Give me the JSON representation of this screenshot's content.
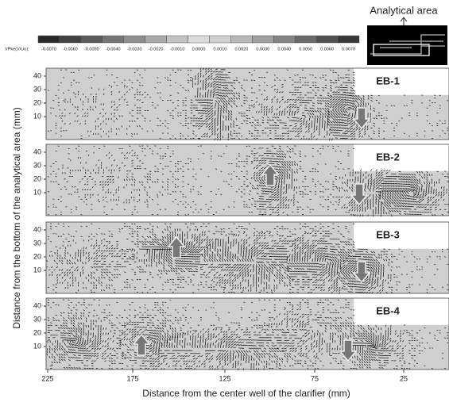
{
  "figure": {
    "inset_label": "Analytical area",
    "colorbar": {
      "label": "VPke(V/Uo):",
      "ticks": [
        "-0.0070",
        "-0.0060",
        "-0.0050",
        "-0.0040",
        "-0.0030",
        "-0.0020",
        "-0.0010",
        "0.0000",
        "0.0010",
        "0.0020",
        "0.0030",
        "0.0040",
        "0.0050",
        "0.0060",
        "0.0070"
      ]
    },
    "panels": [
      {
        "label": "EB-1"
      },
      {
        "label": "EB-2"
      },
      {
        "label": "EB-3"
      },
      {
        "label": "EB-4"
      }
    ],
    "y_ticks": [
      "40",
      "30",
      "20",
      "10"
    ],
    "x_ticks": [
      "225",
      "175",
      "125",
      "75",
      "25"
    ],
    "x_label": "Distance from the center well of the clarifier (mm)",
    "y_label": "Distance from the bottom of the analytical area (mm)"
  }
}
